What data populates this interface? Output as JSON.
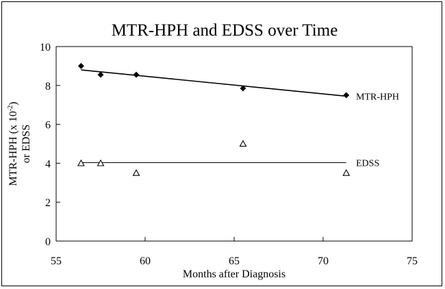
{
  "chart_data": {
    "type": "scatter",
    "title": "MTR-HPH and EDSS over Time",
    "xlabel": "Months after Diagnosis",
    "ylabel_line1": "MTR-HPH (x 10",
    "ylabel_sup": "-2",
    "ylabel_close": ")",
    "ylabel_line2": "or EDSS",
    "xlim": [
      55,
      75
    ],
    "ylim": [
      0,
      10
    ],
    "xticks": [
      55,
      60,
      65,
      70,
      75
    ],
    "yticks": [
      0,
      2,
      4,
      6,
      8,
      10
    ],
    "series": [
      {
        "name": "MTR-HPH",
        "marker": "filled-diamond",
        "x": [
          56.4,
          57.5,
          59.5,
          65.5,
          71.3
        ],
        "y": [
          9.0,
          8.55,
          8.55,
          7.85,
          7.5
        ],
        "trend": {
          "x": [
            56.4,
            71.3
          ],
          "y": [
            8.8,
            7.45
          ]
        }
      },
      {
        "name": "EDSS",
        "marker": "open-triangle",
        "x": [
          56.4,
          57.5,
          59.5,
          65.5,
          71.3
        ],
        "y": [
          4.0,
          4.0,
          3.5,
          5.0,
          3.5
        ],
        "trend": {
          "x": [
            56.4,
            71.3
          ],
          "y": [
            4.03,
            4.03
          ]
        }
      }
    ]
  }
}
